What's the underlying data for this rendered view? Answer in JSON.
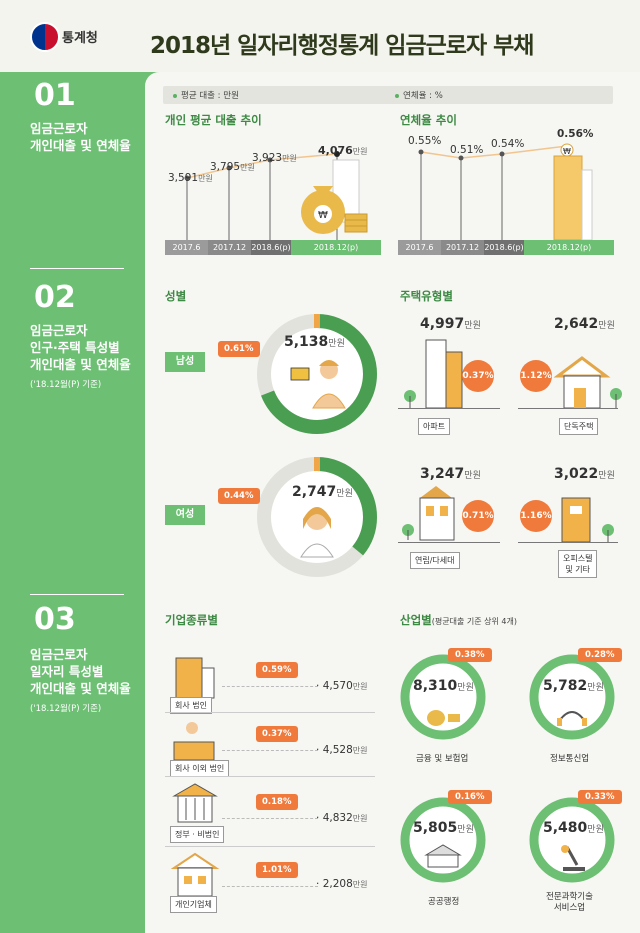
{
  "header": {
    "logo_text": "통계청",
    "title": "2018년 일자리행정통계 임금근로자 부채"
  },
  "sections": [
    {
      "num": "01",
      "title": "임금근로자\n개인대출 및 연체율",
      "note": ""
    },
    {
      "num": "02",
      "title": "임금근로자\n인구·주택 특성별\n개인대출 및 연체율",
      "note": "('18.12월(P) 기준)"
    },
    {
      "num": "03",
      "title": "임금근로자\n일자리 특성별\n개인대출 및 연체율",
      "note": "('18.12월(P) 기준)"
    }
  ],
  "legend": {
    "loan": "평균 대출 : 만원",
    "delinquency": "연체율 : %"
  },
  "loan_trend": {
    "heading": "개인 평균 대출 추이",
    "unit": "만원",
    "periods": [
      "2017.6",
      "2017.12",
      "2018.6(p)",
      "2018.12(p)"
    ],
    "values": [
      "3,591",
      "3,795",
      "3,923",
      "4,076"
    ]
  },
  "delinq_trend": {
    "heading": "연체율 추이",
    "periods": [
      "2017.6",
      "2017.12",
      "2018.6(p)",
      "2018.12(p)"
    ],
    "values": [
      "0.55%",
      "0.51%",
      "0.54%",
      "0.56%"
    ]
  },
  "gender": {
    "heading": "성별",
    "male": {
      "label": "남성",
      "rate": "0.61%",
      "value": "5,138",
      "unit": "만원"
    },
    "female": {
      "label": "여성",
      "rate": "0.44%",
      "value": "2,747",
      "unit": "만원"
    }
  },
  "housing": {
    "heading": "주택유형별",
    "items": [
      {
        "label": "아파트",
        "value": "4,997",
        "unit": "만원",
        "rate": "0.37%"
      },
      {
        "label": "단독주택",
        "value": "2,642",
        "unit": "만원",
        "rate": "1.12%"
      },
      {
        "label": "연립/다세대",
        "value": "3,247",
        "unit": "만원",
        "rate": "0.71%"
      },
      {
        "label": "오피스텔\n및 기타",
        "value": "3,022",
        "unit": "만원",
        "rate": "1.16%"
      }
    ]
  },
  "company": {
    "heading": "기업종류별",
    "items": [
      {
        "label": "회사 법인",
        "rate": "0.59%",
        "value": "4,570",
        "unit": "만원"
      },
      {
        "label": "회사 이외 법인",
        "rate": "0.37%",
        "value": "4,528",
        "unit": "만원"
      },
      {
        "label": "정부 · 비법인",
        "rate": "0.18%",
        "value": "4,832",
        "unit": "만원"
      },
      {
        "label": "개인기업체",
        "rate": "1.01%",
        "value": "2,208",
        "unit": "만원"
      }
    ]
  },
  "industry": {
    "heading": "산업별",
    "heading_note": "(평균대출 기준 상위 4개)",
    "items": [
      {
        "label": "금융 및 보험업",
        "rate": "0.38%",
        "value": "8,310",
        "unit": "만원"
      },
      {
        "label": "정보통신업",
        "rate": "0.28%",
        "value": "5,782",
        "unit": "만원"
      },
      {
        "label": "공공행정",
        "rate": "0.16%",
        "value": "5,805",
        "unit": "만원"
      },
      {
        "label": "전문과학기술\n서비스업",
        "rate": "0.33%",
        "value": "5,480",
        "unit": "만원"
      }
    ]
  },
  "colors": {
    "green": "#6cbf73",
    "dark_green": "#3d8a44",
    "orange": "#ef7a3b",
    "gray": "#9b9b9b"
  }
}
